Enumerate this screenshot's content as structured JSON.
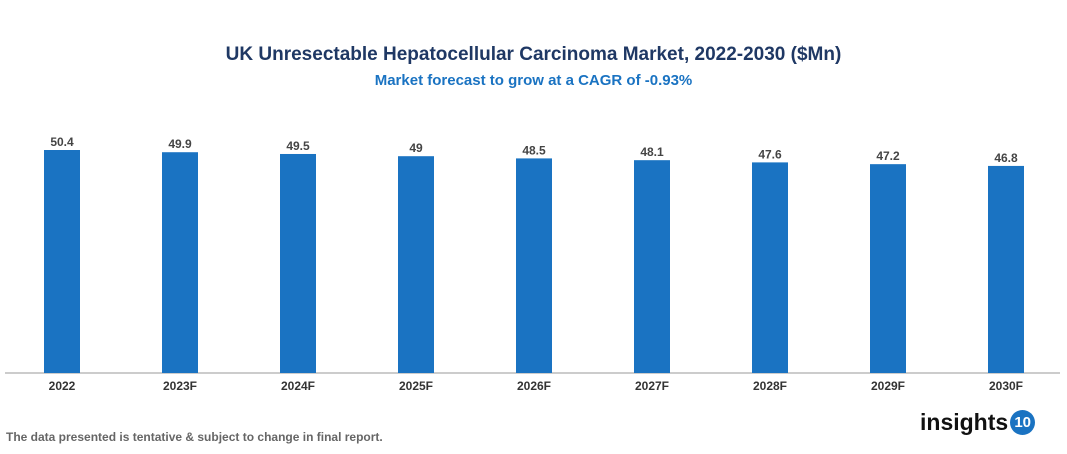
{
  "chart_data": {
    "type": "bar",
    "title": "UK Unresectable Hepatocellular Carcinoma Market, 2022-2030 ($Mn)",
    "subtitle": "Market forecast to grow at a CAGR of -0.93%",
    "categories": [
      "2022",
      "2023F",
      "2024F",
      "2025F",
      "2026F",
      "2027F",
      "2028F",
      "2029F",
      "2030F"
    ],
    "values": [
      50.4,
      49.9,
      49.5,
      49,
      48.5,
      48.1,
      47.6,
      47.2,
      46.8
    ],
    "data_labels": [
      "50.4",
      "49.9",
      "49.5",
      "49",
      "48.5",
      "48.1",
      "47.6",
      "47.2",
      "46.8"
    ],
    "xlabel": "",
    "ylabel": "",
    "ylim": [
      0,
      50.4
    ],
    "grid": false,
    "bar_color": "#1a73c2"
  },
  "footnote": "The data presented is tentative & subject to change in final report.",
  "logo": {
    "text": "insights",
    "badge": "10"
  }
}
